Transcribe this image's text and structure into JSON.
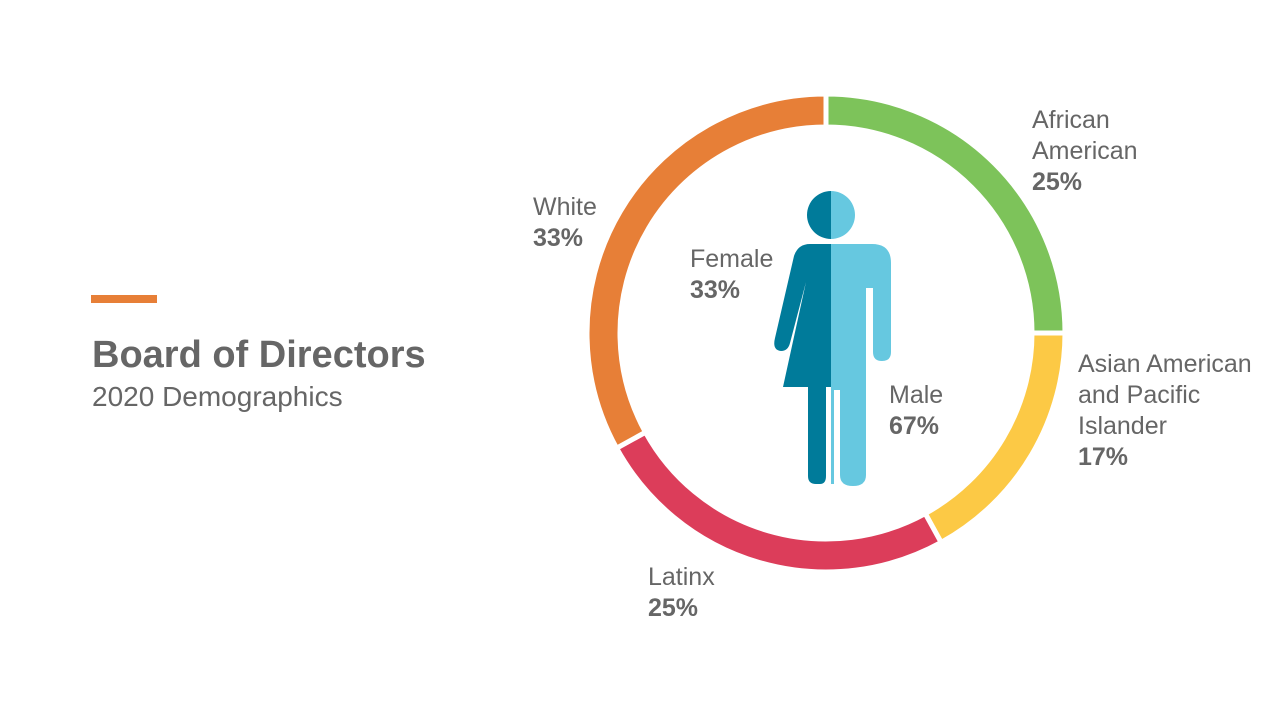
{
  "slide": {
    "title": "Board of Directors",
    "subtitle": "2020 Demographics"
  },
  "chart_data": [
    {
      "type": "donut",
      "categories": [
        "African American",
        "Asian American and Pacific Islander",
        "Latinx",
        "White"
      ],
      "values": [
        25,
        17,
        25,
        33
      ],
      "value_labels": [
        "25%",
        "17%",
        "25%",
        "33%"
      ],
      "colors": [
        "#7dc35a",
        "#fcc945",
        "#dc3d5a",
        "#e77f37"
      ]
    },
    {
      "type": "pictogram",
      "categories": [
        "Female",
        "Male"
      ],
      "values": [
        33,
        67
      ],
      "value_labels": [
        "33%",
        "67%"
      ],
      "colors": [
        "#007b9a",
        "#66c8e0"
      ]
    }
  ]
}
